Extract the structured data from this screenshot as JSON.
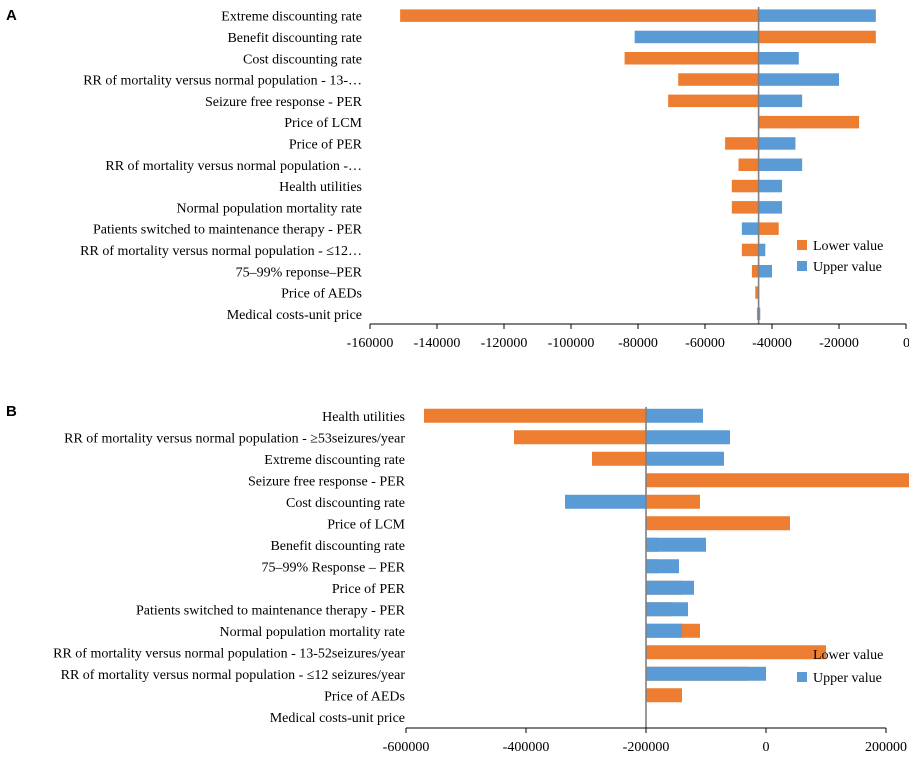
{
  "colors": {
    "lower": "#ED7D31",
    "upper": "#5B9BD5",
    "axis": "#000000",
    "baseline": "#808080"
  },
  "chart_data": [
    {
      "panel": "A",
      "type": "tornado",
      "title": "",
      "xlabel": "",
      "ylabel": "",
      "xlim": [
        -160000,
        0
      ],
      "xticks": [
        -160000,
        -140000,
        -120000,
        -100000,
        -80000,
        -60000,
        -40000,
        -20000,
        0
      ],
      "tick_labels": [
        "-160000",
        "-140000",
        "-120000",
        "-100000",
        "-80000",
        "-60000",
        "-40000",
        "-20000",
        "0"
      ],
      "base_value": -44000,
      "legend": {
        "position": "right",
        "labels": [
          "Lower value",
          "Upper value"
        ]
      },
      "categories": [
        "Extreme discounting rate",
        "Benefit discounting rate",
        "Cost discounting rate",
        "RR of mortality versus normal population - 13-…",
        "Seizure free response - PER",
        "Price of LCM",
        "Price of PER",
        "RR of mortality versus normal population -…",
        "Health utilities",
        "Normal population mortality rate",
        "Patients switched to maintenance therapy - PER",
        "RR of mortality versus normal population - ≤12…",
        "75–99% reponse–PER",
        "Price of AEDs",
        "Medical costs-unit price"
      ],
      "series": [
        {
          "name": "Lower value",
          "values": [
            -151000,
            -9000,
            -84000,
            -68000,
            -71000,
            -14000,
            -54000,
            -50000,
            -52000,
            -52000,
            -38000,
            -49000,
            -46000,
            -45000,
            -44500
          ]
        },
        {
          "name": "Upper value",
          "values": [
            -9000,
            -81000,
            -32000,
            -20000,
            -31000,
            -44000,
            -33000,
            -31000,
            -37000,
            -37000,
            -49000,
            -42000,
            -40000,
            -44000,
            -43500
          ]
        }
      ]
    },
    {
      "panel": "B",
      "type": "tornado",
      "title": "",
      "xlabel": "",
      "ylabel": "",
      "xlim": [
        -600000,
        200000
      ],
      "xticks": [
        -600000,
        -400000,
        -200000,
        0,
        200000
      ],
      "tick_labels": [
        "-600000",
        "-400000",
        "-200000",
        "0",
        "200000"
      ],
      "base_value": -200000,
      "legend": {
        "position": "right",
        "labels": [
          "Lower value",
          "Upper value"
        ]
      },
      "categories": [
        "Health utilities",
        "RR of mortality versus normal population - ≥53seizures/year",
        "Extreme discounting rate",
        "Seizure free response - PER",
        "Cost discounting rate",
        "Price of LCM",
        "Benefit discounting rate",
        "75–99% Response – PER",
        "Price of PER",
        "Patients switched to maintenance therapy - PER",
        "Normal population mortality rate",
        "RR of mortality versus normal population - 13-52seizures/year",
        "RR of mortality versus normal population - ≤12 seizures/year",
        "Price of AEDs",
        "Medical costs-unit price"
      ],
      "series": [
        {
          "name": "Lower value",
          "values": [
            -570000,
            -420000,
            -290000,
            280000,
            -110000,
            40000,
            -180000,
            -180000,
            -140000,
            -155000,
            -110000,
            100000,
            -30000,
            -140000,
            -200000
          ]
        },
        {
          "name": "Upper value",
          "values": [
            -105000,
            -60000,
            -70000,
            -200000,
            -335000,
            -200000,
            -100000,
            -145000,
            -120000,
            -130000,
            -140000,
            -200000,
            0,
            -200000,
            -200000
          ]
        }
      ]
    }
  ]
}
